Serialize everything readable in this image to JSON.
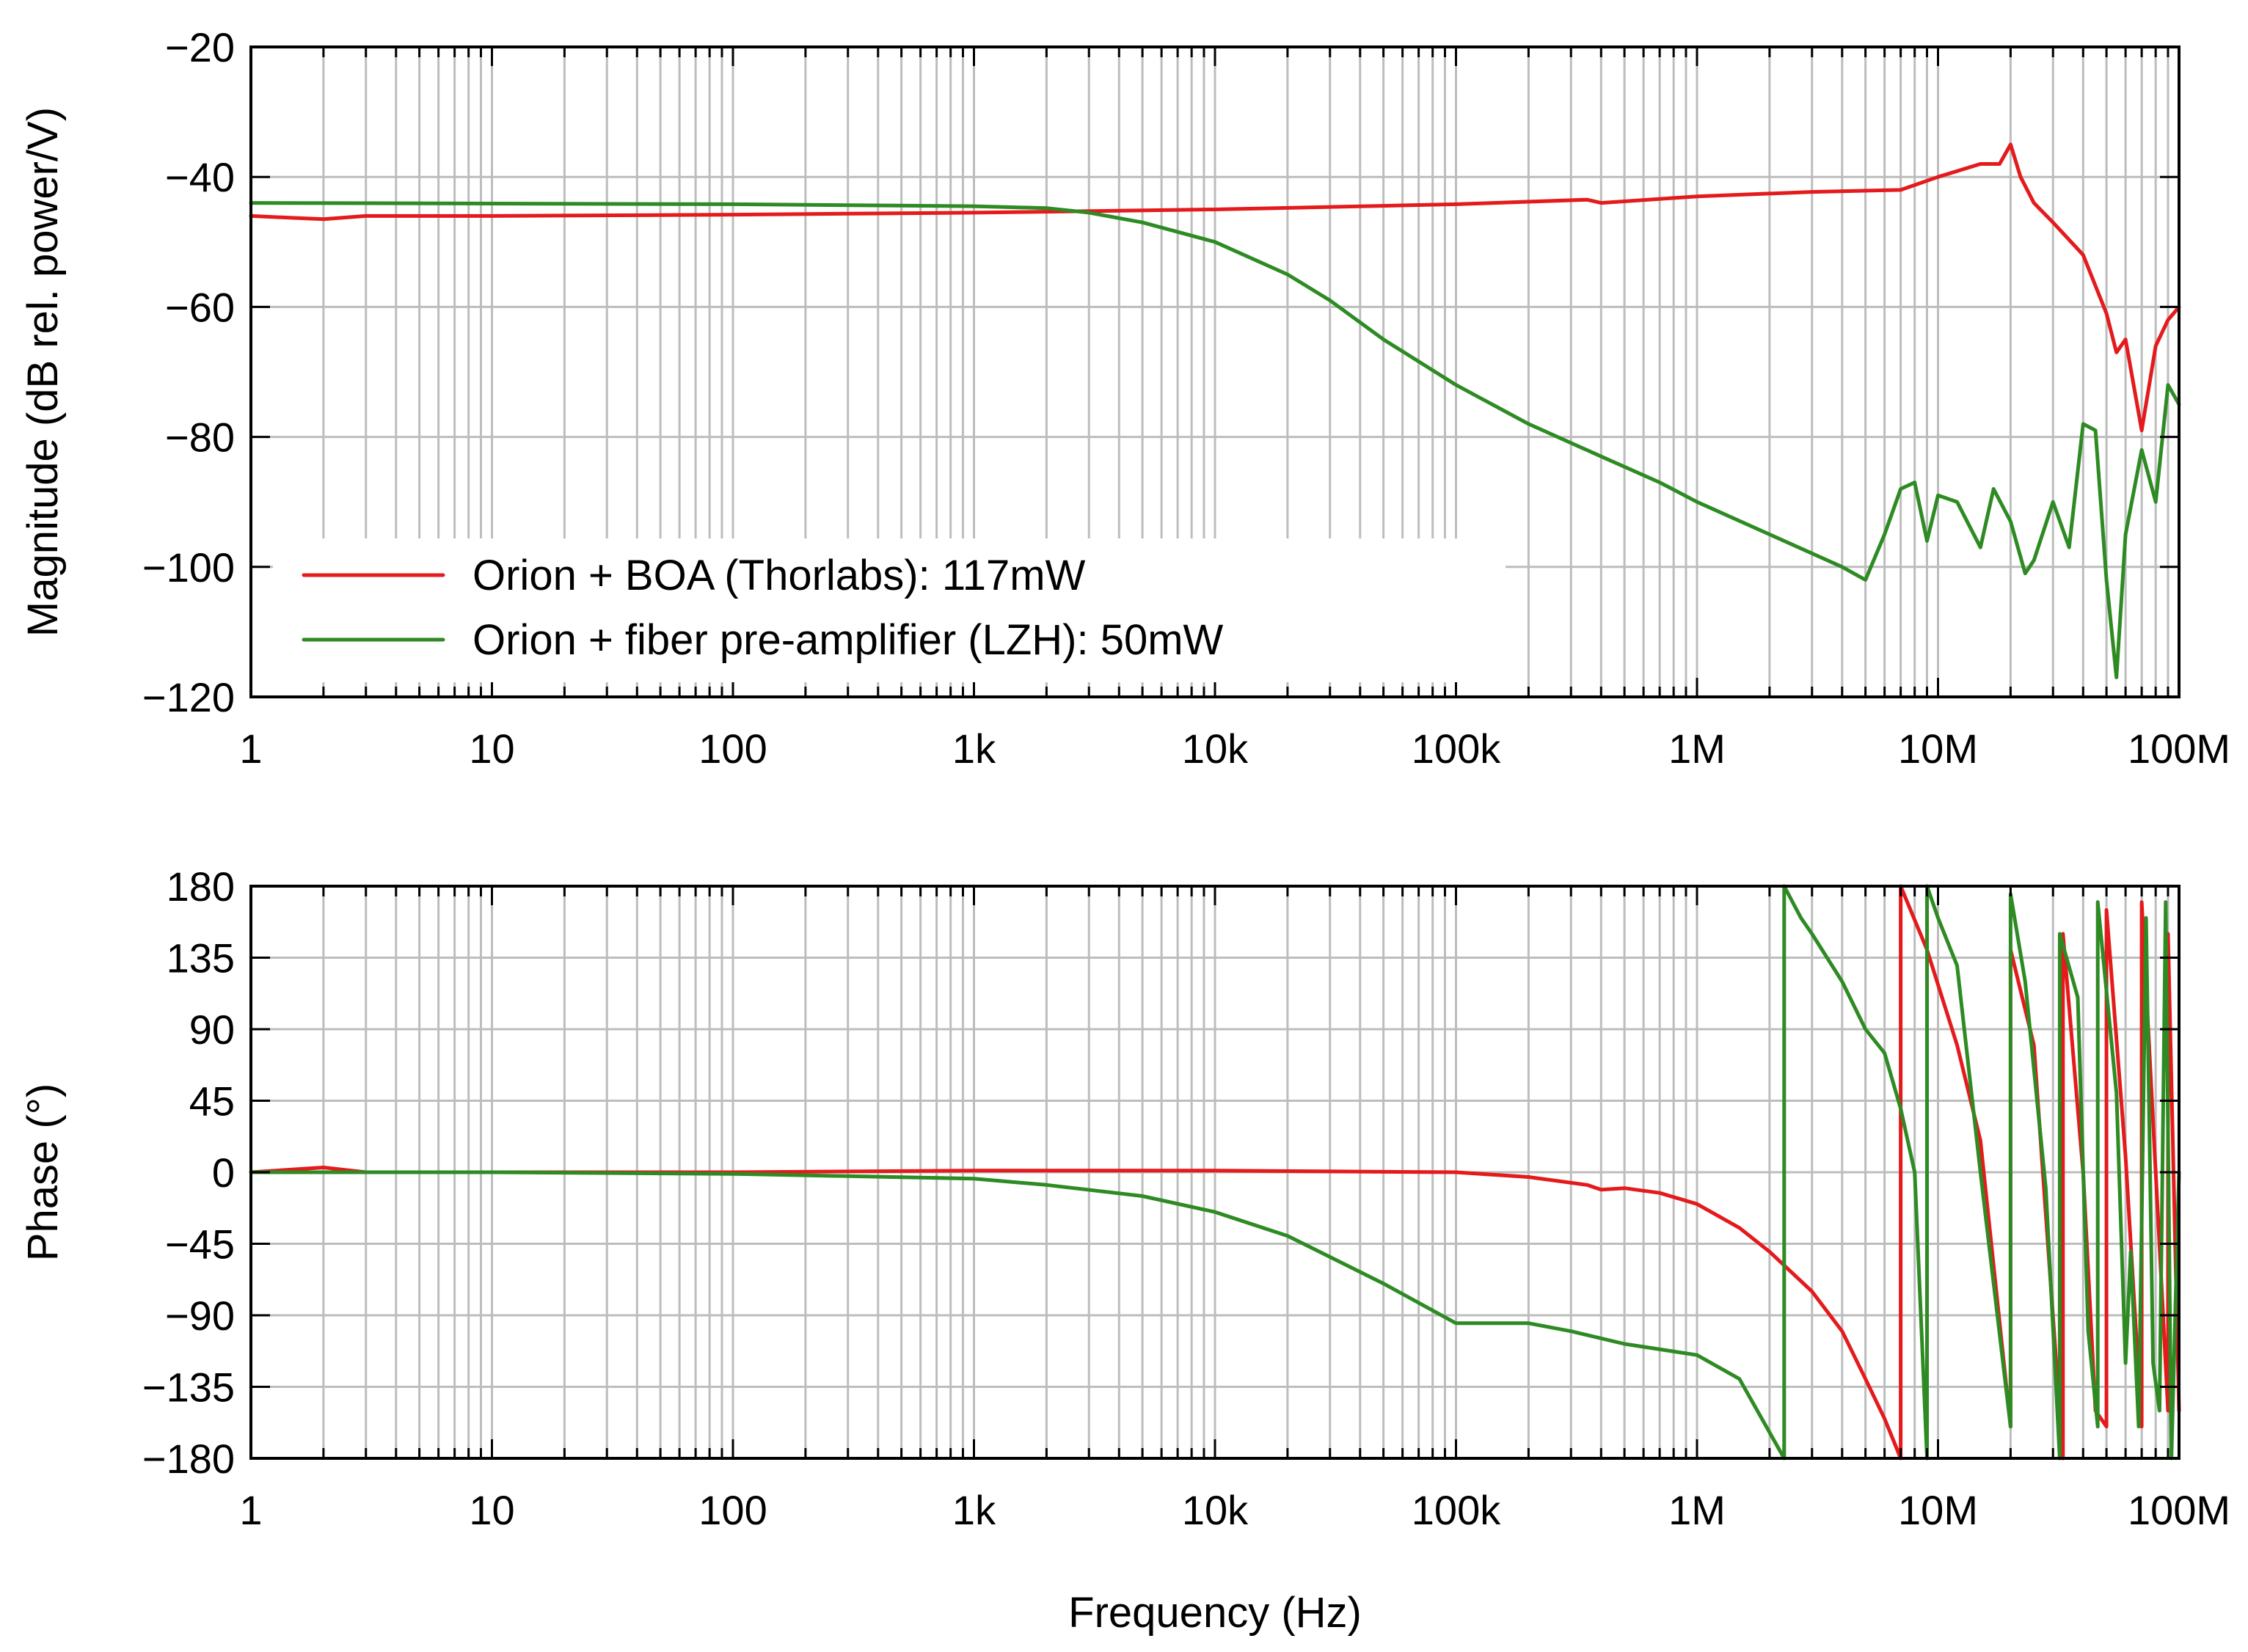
{
  "chart_data": [
    {
      "type": "line",
      "name": "magnitude-plot",
      "xscale": "log",
      "xlim": [
        1,
        100000000
      ],
      "ylim": [
        -120,
        -20
      ],
      "xticks": [
        1,
        10,
        100,
        1000,
        10000,
        100000,
        1000000,
        10000000,
        100000000
      ],
      "xticklabels": [
        "1",
        "10",
        "100",
        "1k",
        "10k",
        "100k",
        "1M",
        "10M",
        "100M"
      ],
      "yticks": [
        -20,
        -40,
        -60,
        -80,
        -100,
        -120
      ],
      "yticklabels": [
        "−20",
        "−40",
        "−60",
        "−80",
        "−100",
        "−120"
      ],
      "xlabel": "",
      "ylabel": "Magnitude (dB rel. power/V)",
      "grid": true,
      "legend_position": "bottom-left",
      "series": [
        {
          "name": "Orion + BOA (Thorlabs): 117mW",
          "color": "#e41a1c",
          "x": [
            1,
            1.5,
            2,
            3,
            10,
            100,
            1000,
            10000,
            100000,
            350000,
            400000,
            1000000,
            3000000,
            7000000,
            10000000,
            15000000,
            18000000,
            20000000,
            22000000,
            25000000,
            30000000,
            40000000,
            50000000,
            55000000,
            60000000,
            70000000,
            80000000,
            90000000,
            100000000
          ],
          "values": [
            -46,
            -46.3,
            -46.5,
            -46,
            -46,
            -45.8,
            -45.5,
            -45,
            -44.2,
            -43.5,
            -44,
            -43,
            -42.3,
            -42,
            -40,
            -38,
            -38,
            -35,
            -40,
            -44,
            -47,
            -52,
            -61,
            -67,
            -65,
            -79,
            -66,
            -62,
            -60
          ]
        },
        {
          "name": "Orion + fiber pre-amplifier (LZH): 50mW",
          "color": "#2e8b23",
          "x": [
            1,
            10,
            100,
            1000,
            2000,
            3000,
            5000,
            10000,
            20000,
            30000,
            50000,
            100000,
            200000,
            400000,
            700000,
            1000000,
            2000000,
            4000000,
            5000000,
            6000000,
            7000000,
            8000000,
            9000000,
            10000000,
            12000000,
            15000000,
            17000000,
            20000000,
            23000000,
            25000000,
            30000000,
            35000000,
            40000000,
            45000000,
            50000000,
            55000000,
            60000000,
            70000000,
            80000000,
            90000000,
            100000000
          ],
          "values": [
            -44,
            -44.1,
            -44.2,
            -44.5,
            -44.8,
            -45.5,
            -47,
            -50,
            -55,
            -59,
            -65,
            -72,
            -78,
            -83,
            -87,
            -90,
            -95,
            -100,
            -102,
            -95,
            -88,
            -87,
            -96,
            -89,
            -90,
            -97,
            -88,
            -93,
            -101,
            -99,
            -90,
            -97,
            -78,
            -79,
            -102,
            -117,
            -95,
            -82,
            -90,
            -72,
            -75
          ]
        }
      ]
    },
    {
      "type": "line",
      "name": "phase-plot",
      "xscale": "log",
      "xlim": [
        1,
        100000000
      ],
      "ylim": [
        -180,
        180
      ],
      "xticks": [
        1,
        10,
        100,
        1000,
        10000,
        100000,
        1000000,
        10000000,
        100000000
      ],
      "xticklabels": [
        "1",
        "10",
        "100",
        "1k",
        "10k",
        "100k",
        "1M",
        "10M",
        "100M"
      ],
      "yticks": [
        180,
        135,
        90,
        45,
        0,
        -45,
        -90,
        -135,
        -180
      ],
      "yticklabels": [
        "180",
        "135",
        "90",
        "45",
        "0",
        "−45",
        "−90",
        "−135",
        "−180"
      ],
      "xlabel": "Frequency (Hz)",
      "ylabel": "Phase (°)",
      "grid": true,
      "series": [
        {
          "name": "Orion + BOA (Thorlabs): 117mW",
          "color": "#e41a1c",
          "x": [
            1,
            2,
            3,
            10,
            100,
            1000,
            10000,
            100000,
            200000,
            350000,
            400000,
            500000,
            700000,
            1000000,
            1500000,
            2000000,
            3000000,
            4000000,
            5000000,
            6000000,
            7000000,
            7000001,
            9000000,
            12000000,
            15000000,
            20000000,
            20000001,
            25000000,
            33000000,
            33000001,
            40000000,
            45000000,
            50000000,
            50000001,
            60000000,
            70000000,
            70000001,
            80000000,
            90000000,
            90000001,
            100000000
          ],
          "values": [
            0,
            3,
            0,
            0,
            0,
            1,
            1,
            0,
            -3,
            -8,
            -11,
            -10,
            -13,
            -20,
            -35,
            -50,
            -75,
            -100,
            -130,
            -155,
            -180,
            180,
            140,
            80,
            20,
            -160,
            140,
            80,
            -180,
            150,
            0,
            -150,
            -160,
            165,
            10,
            -160,
            170,
            0,
            -150,
            150,
            -150
          ]
        },
        {
          "name": "Orion + fiber pre-amplifier (LZH): 50mW",
          "color": "#2e8b23",
          "x": [
            1,
            10,
            100,
            1000,
            2000,
            5000,
            10000,
            20000,
            50000,
            100000,
            200000,
            300000,
            500000,
            1000000,
            1500000,
            2300000,
            2300001,
            2700000,
            3000000,
            4000000,
            5000000,
            6000000,
            7000000,
            8000000,
            9000000,
            9000001,
            10000000,
            12000000,
            15000000,
            20000000,
            20000001,
            23000000,
            28000000,
            32000000,
            32000001,
            38000000,
            42000000,
            46000000,
            46000001,
            55000000,
            60000000,
            63000000,
            68000000,
            73000000,
            78000000,
            83000000,
            88000000,
            93000000,
            100000000
          ],
          "values": [
            0,
            0,
            -1,
            -4,
            -8,
            -15,
            -25,
            -40,
            -70,
            -95,
            -95,
            -100,
            -108,
            -115,
            -130,
            -180,
            180,
            160,
            150,
            120,
            90,
            75,
            40,
            0,
            -180,
            180,
            160,
            130,
            0,
            -160,
            175,
            120,
            -10,
            -180,
            150,
            110,
            -100,
            -160,
            170,
            50,
            -120,
            -50,
            -160,
            160,
            -120,
            -150,
            170,
            -180,
            0
          ]
        }
      ]
    }
  ]
}
